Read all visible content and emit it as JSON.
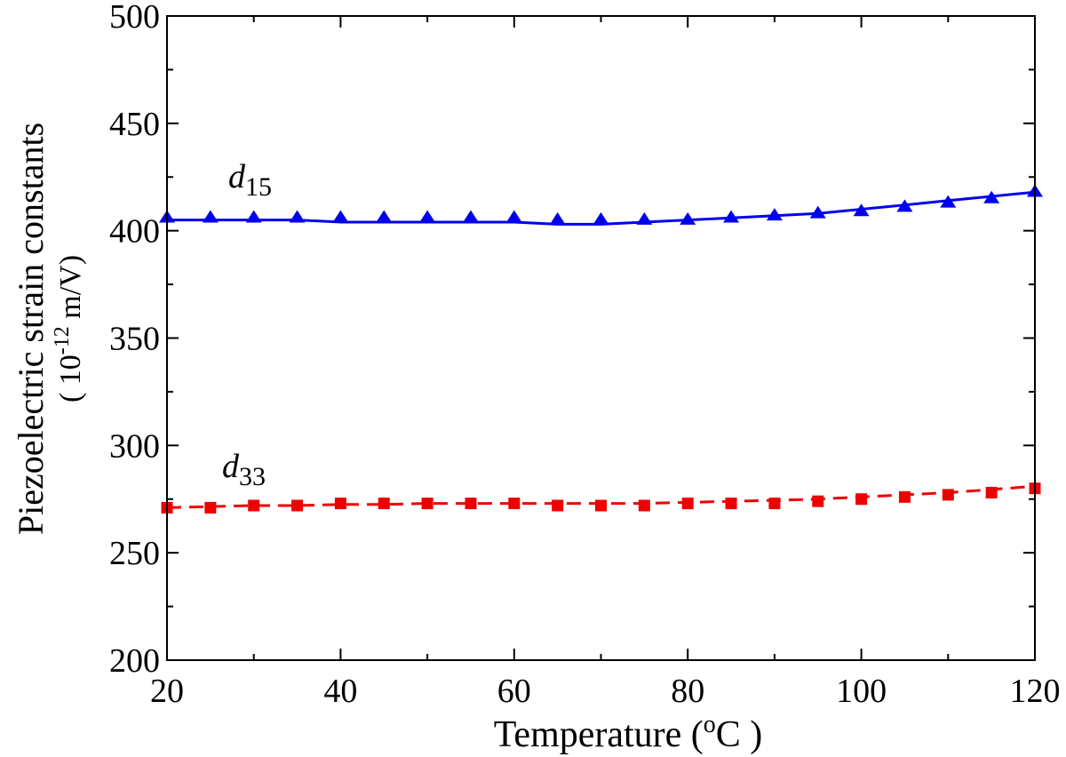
{
  "chart_data": {
    "type": "line",
    "title": "",
    "xlabel": "Temperature ( ºC )",
    "xlabel_parts": {
      "main": "Temperature (",
      "sup": "o",
      "unit": "C )"
    },
    "ylabel_line1": "Piezoelectric strain constants",
    "ylabel_line2_parts": {
      "open": "( 10",
      "sup": "-12",
      "close": " m/V)"
    },
    "xlim": [
      20,
      120
    ],
    "ylim": [
      200,
      500
    ],
    "xticks": [
      20,
      40,
      60,
      80,
      100,
      120
    ],
    "yticks": [
      200,
      250,
      300,
      350,
      400,
      450,
      500
    ],
    "x": [
      20,
      25,
      30,
      35,
      40,
      45,
      50,
      55,
      60,
      65,
      70,
      75,
      80,
      85,
      90,
      95,
      100,
      105,
      110,
      115,
      120
    ],
    "series": [
      {
        "name": "d15",
        "label_main": "d",
        "label_sub": "15",
        "color": "#0000ee",
        "marker": "triangle",
        "line": "solid",
        "values": [
          406,
          406,
          406,
          406,
          406,
          406,
          406,
          406,
          406,
          405,
          405,
          405,
          405,
          406,
          407,
          408,
          409,
          411,
          413,
          415,
          418
        ],
        "fit": [
          405,
          405,
          405,
          405,
          404,
          404,
          404,
          404,
          404,
          403,
          403,
          404,
          405,
          406,
          407,
          408,
          410,
          412,
          414,
          416,
          418
        ]
      },
      {
        "name": "d33",
        "label_main": "d",
        "label_sub": "33",
        "color": "#ee0000",
        "marker": "square",
        "line": "dashed",
        "values": [
          271,
          271,
          272,
          272,
          273,
          273,
          273,
          273,
          273,
          272,
          272,
          272,
          273,
          273,
          273,
          274,
          275,
          276,
          277,
          278,
          280
        ],
        "fit": [
          271,
          271.5,
          272,
          272,
          272.5,
          272.5,
          273,
          273,
          273,
          273,
          273,
          273,
          273.5,
          274,
          274.5,
          275,
          276,
          277,
          278,
          279.5,
          281
        ]
      }
    ]
  }
}
